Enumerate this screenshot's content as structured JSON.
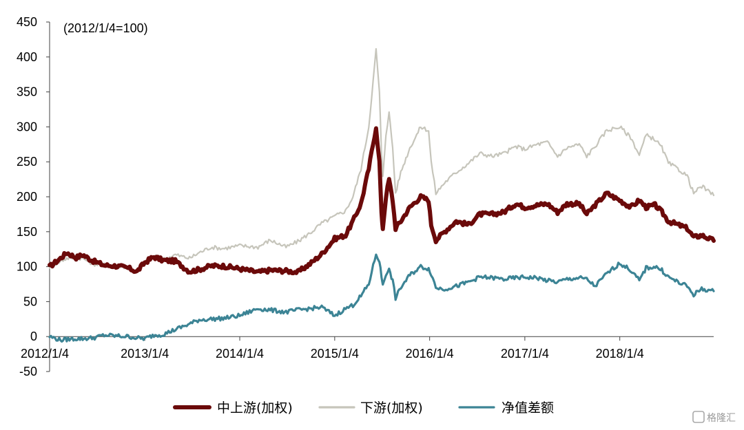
{
  "chart_data": {
    "type": "line",
    "note": "(2012/1/4=100)",
    "ylim": [
      -50,
      450
    ],
    "y_ticks": [
      450,
      400,
      350,
      300,
      250,
      200,
      150,
      100,
      50,
      0,
      -50
    ],
    "x_tick_labels": [
      "2012/1/4",
      "2013/1/4",
      "2014/1/4",
      "2015/1/4",
      "2016/1/4",
      "2017/1/4",
      "2018/1/4"
    ],
    "x_tick_dates": [
      "2012-01-04",
      "2013-01-04",
      "2014-01-04",
      "2015-01-04",
      "2016-01-04",
      "2017-01-04",
      "2018-01-04"
    ],
    "x_range": [
      "2012-01-04",
      "2018-12-31"
    ],
    "legend_position": "bottom",
    "grid": false,
    "series": [
      {
        "name": "中上游(加权)",
        "color": "#6b0a0a",
        "style": "thick",
        "points": [
          [
            "2012-01-04",
            100
          ],
          [
            "2012-02-15",
            112
          ],
          [
            "2012-03-10",
            120
          ],
          [
            "2012-04-15",
            113
          ],
          [
            "2012-05-10",
            117
          ],
          [
            "2012-06-20",
            108
          ],
          [
            "2012-08-01",
            102
          ],
          [
            "2012-09-15",
            101
          ],
          [
            "2012-11-01",
            98
          ],
          [
            "2012-12-05",
            93
          ],
          [
            "2013-01-04",
            106
          ],
          [
            "2013-02-08",
            114
          ],
          [
            "2013-03-15",
            109
          ],
          [
            "2013-05-01",
            108
          ],
          [
            "2013-06-25",
            93
          ],
          [
            "2013-08-01",
            96
          ],
          [
            "2013-09-15",
            101
          ],
          [
            "2013-11-01",
            101
          ],
          [
            "2014-01-04",
            97
          ],
          [
            "2014-03-15",
            92
          ],
          [
            "2014-05-01",
            95
          ],
          [
            "2014-07-01",
            94
          ],
          [
            "2014-08-15",
            92
          ],
          [
            "2014-10-01",
            104
          ],
          [
            "2014-11-15",
            118
          ],
          [
            "2015-01-04",
            140
          ],
          [
            "2015-02-15",
            145
          ],
          [
            "2015-03-15",
            165
          ],
          [
            "2015-04-15",
            190
          ],
          [
            "2015-05-15",
            240
          ],
          [
            "2015-06-12",
            300
          ],
          [
            "2015-06-25",
            250
          ],
          [
            "2015-07-03",
            175
          ],
          [
            "2015-07-08",
            155
          ],
          [
            "2015-07-20",
            200
          ],
          [
            "2015-08-01",
            225
          ],
          [
            "2015-08-15",
            195
          ],
          [
            "2015-08-26",
            155
          ],
          [
            "2015-09-15",
            165
          ],
          [
            "2015-10-20",
            185
          ],
          [
            "2015-12-01",
            200
          ],
          [
            "2015-12-31",
            195
          ],
          [
            "2016-01-10",
            160
          ],
          [
            "2016-01-28",
            138
          ],
          [
            "2016-03-01",
            150
          ],
          [
            "2016-04-15",
            165
          ],
          [
            "2016-06-01",
            160
          ],
          [
            "2016-07-15",
            175
          ],
          [
            "2016-09-01",
            175
          ],
          [
            "2016-10-15",
            178
          ],
          [
            "2016-11-30",
            190
          ],
          [
            "2017-01-04",
            185
          ],
          [
            "2017-02-20",
            188
          ],
          [
            "2017-04-01",
            190
          ],
          [
            "2017-05-10",
            178
          ],
          [
            "2017-06-15",
            190
          ],
          [
            "2017-08-01",
            190
          ],
          [
            "2017-08-30",
            175
          ],
          [
            "2017-10-01",
            188
          ],
          [
            "2017-11-15",
            205
          ],
          [
            "2018-01-04",
            195
          ],
          [
            "2018-02-15",
            185
          ],
          [
            "2018-03-20",
            195
          ],
          [
            "2018-04-15",
            185
          ],
          [
            "2018-05-20",
            188
          ],
          [
            "2018-06-15",
            178
          ],
          [
            "2018-07-10",
            165
          ],
          [
            "2018-08-15",
            160
          ],
          [
            "2018-09-20",
            155
          ],
          [
            "2018-10-15",
            142
          ],
          [
            "2018-11-15",
            145
          ],
          [
            "2018-12-31",
            137
          ]
        ]
      },
      {
        "name": "下游(加权)",
        "color": "#c6c5bb",
        "style": "thin",
        "points": [
          [
            "2012-01-04",
            100
          ],
          [
            "2012-02-15",
            108
          ],
          [
            "2012-03-10",
            112
          ],
          [
            "2012-04-15",
            113
          ],
          [
            "2012-05-10",
            112
          ],
          [
            "2012-06-20",
            104
          ],
          [
            "2012-08-01",
            103
          ],
          [
            "2012-09-15",
            102
          ],
          [
            "2012-11-01",
            99
          ],
          [
            "2012-12-05",
            92
          ],
          [
            "2013-01-04",
            108
          ],
          [
            "2013-02-08",
            115
          ],
          [
            "2013-03-15",
            110
          ],
          [
            "2013-05-01",
            117
          ],
          [
            "2013-06-25",
            112
          ],
          [
            "2013-08-01",
            120
          ],
          [
            "2013-09-15",
            128
          ],
          [
            "2013-11-01",
            126
          ],
          [
            "2014-01-04",
            130
          ],
          [
            "2014-03-15",
            128
          ],
          [
            "2014-05-01",
            138
          ],
          [
            "2014-07-01",
            128
          ],
          [
            "2014-08-15",
            136
          ],
          [
            "2014-10-01",
            148
          ],
          [
            "2014-11-15",
            162
          ],
          [
            "2015-01-04",
            172
          ],
          [
            "2015-02-15",
            180
          ],
          [
            "2015-03-15",
            200
          ],
          [
            "2015-04-15",
            240
          ],
          [
            "2015-05-15",
            300
          ],
          [
            "2015-06-12",
            410
          ],
          [
            "2015-06-25",
            350
          ],
          [
            "2015-07-03",
            260
          ],
          [
            "2015-07-08",
            230
          ],
          [
            "2015-07-20",
            290
          ],
          [
            "2015-08-01",
            320
          ],
          [
            "2015-08-15",
            270
          ],
          [
            "2015-08-26",
            205
          ],
          [
            "2015-09-15",
            235
          ],
          [
            "2015-10-20",
            270
          ],
          [
            "2015-12-01",
            300
          ],
          [
            "2015-12-31",
            295
          ],
          [
            "2016-01-10",
            250
          ],
          [
            "2016-01-28",
            205
          ],
          [
            "2016-03-01",
            220
          ],
          [
            "2016-04-15",
            235
          ],
          [
            "2016-06-01",
            248
          ],
          [
            "2016-07-15",
            262
          ],
          [
            "2016-09-01",
            258
          ],
          [
            "2016-10-15",
            262
          ],
          [
            "2016-11-30",
            272
          ],
          [
            "2017-01-04",
            268
          ],
          [
            "2017-02-20",
            275
          ],
          [
            "2017-04-01",
            278
          ],
          [
            "2017-05-10",
            258
          ],
          [
            "2017-06-15",
            270
          ],
          [
            "2017-08-01",
            275
          ],
          [
            "2017-08-30",
            258
          ],
          [
            "2017-10-01",
            272
          ],
          [
            "2017-11-15",
            295
          ],
          [
            "2018-01-04",
            300
          ],
          [
            "2018-02-15",
            285
          ],
          [
            "2018-03-20",
            260
          ],
          [
            "2018-04-15",
            288
          ],
          [
            "2018-05-20",
            282
          ],
          [
            "2018-06-15",
            270
          ],
          [
            "2018-07-10",
            248
          ],
          [
            "2018-08-15",
            240
          ],
          [
            "2018-09-20",
            230
          ],
          [
            "2018-10-15",
            205
          ],
          [
            "2018-11-15",
            215
          ],
          [
            "2018-12-31",
            202
          ]
        ]
      },
      {
        "name": "净值差额",
        "color": "#3c8495",
        "style": "medium",
        "points": [
          [
            "2012-01-04",
            0
          ],
          [
            "2012-02-15",
            -5
          ],
          [
            "2012-03-10",
            -4
          ],
          [
            "2012-04-15",
            -3
          ],
          [
            "2012-05-10",
            -3
          ],
          [
            "2012-06-20",
            -2
          ],
          [
            "2012-08-01",
            2
          ],
          [
            "2012-09-15",
            1
          ],
          [
            "2012-11-01",
            0
          ],
          [
            "2012-12-05",
            -2
          ],
          [
            "2013-01-04",
            -3
          ],
          [
            "2013-02-08",
            2
          ],
          [
            "2013-03-15",
            3
          ],
          [
            "2013-05-01",
            10
          ],
          [
            "2013-06-25",
            18
          ],
          [
            "2013-08-01",
            24
          ],
          [
            "2013-09-15",
            25
          ],
          [
            "2013-11-01",
            26
          ],
          [
            "2014-01-04",
            30
          ],
          [
            "2014-03-15",
            40
          ],
          [
            "2014-05-01",
            38
          ],
          [
            "2014-07-01",
            35
          ],
          [
            "2014-08-15",
            38
          ],
          [
            "2014-10-01",
            40
          ],
          [
            "2014-11-15",
            42
          ],
          [
            "2015-01-04",
            30
          ],
          [
            "2015-02-15",
            40
          ],
          [
            "2015-03-15",
            45
          ],
          [
            "2015-04-15",
            58
          ],
          [
            "2015-05-15",
            75
          ],
          [
            "2015-06-12",
            118
          ],
          [
            "2015-06-25",
            108
          ],
          [
            "2015-07-03",
            85
          ],
          [
            "2015-07-08",
            75
          ],
          [
            "2015-07-20",
            90
          ],
          [
            "2015-08-01",
            95
          ],
          [
            "2015-08-15",
            80
          ],
          [
            "2015-08-26",
            55
          ],
          [
            "2015-09-15",
            70
          ],
          [
            "2015-10-20",
            88
          ],
          [
            "2015-12-01",
            100
          ],
          [
            "2015-12-31",
            97
          ],
          [
            "2016-01-10",
            90
          ],
          [
            "2016-01-28",
            70
          ],
          [
            "2016-03-01",
            68
          ],
          [
            "2016-04-15",
            72
          ],
          [
            "2016-06-01",
            78
          ],
          [
            "2016-07-15",
            85
          ],
          [
            "2016-09-01",
            84
          ],
          [
            "2016-10-15",
            82
          ],
          [
            "2016-11-30",
            84
          ],
          [
            "2017-01-04",
            85
          ],
          [
            "2017-02-20",
            84
          ],
          [
            "2017-04-01",
            80
          ],
          [
            "2017-05-10",
            78
          ],
          [
            "2017-06-15",
            82
          ],
          [
            "2017-08-01",
            84
          ],
          [
            "2017-08-30",
            82
          ],
          [
            "2017-10-01",
            72
          ],
          [
            "2017-11-15",
            90
          ],
          [
            "2018-01-04",
            105
          ],
          [
            "2018-02-15",
            95
          ],
          [
            "2018-03-20",
            80
          ],
          [
            "2018-04-15",
            98
          ],
          [
            "2018-05-20",
            100
          ],
          [
            "2018-06-15",
            95
          ],
          [
            "2018-07-10",
            85
          ],
          [
            "2018-08-15",
            78
          ],
          [
            "2018-09-20",
            72
          ],
          [
            "2018-10-15",
            60
          ],
          [
            "2018-11-15",
            68
          ],
          [
            "2018-12-31",
            65
          ]
        ]
      }
    ]
  },
  "watermark": "格隆汇"
}
